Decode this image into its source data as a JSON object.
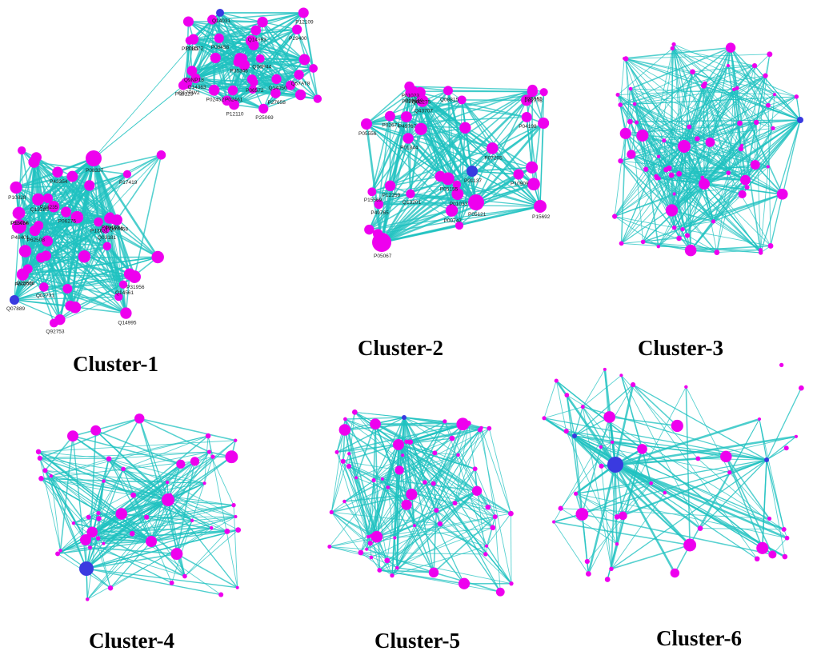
{
  "colors": {
    "edge": "#1fc2c0",
    "node": "#ee00ee",
    "hub": "#3a3ae0"
  },
  "clusters": [
    {
      "name": "Cluster-1",
      "node_labels": [
        "P08337",
        "Q07889",
        "P48401",
        "P16235",
        "P00270",
        "Q15836",
        "Q02731",
        "P06275",
        "P49443",
        "P22736",
        "Q14561",
        "P43354",
        "P55056",
        "P31956",
        "P11474",
        "P10828",
        "Q13285",
        "Q14995",
        "P62508",
        "P13631",
        "Q03181",
        "P17419",
        "Q9Y468",
        "Q92753",
        "Q14031",
        "Q17RW2",
        "P08458",
        "P06572",
        "Q14993",
        "P08123",
        "P29400",
        "P35346",
        "P12110",
        "P12109",
        "P12111",
        "P27658",
        "P25069",
        "Q9NP18",
        "Q06P44",
        "Q57AT8",
        "Q14050",
        "Q14363",
        "P02452",
        "P02461",
        "P08572"
      ]
    },
    {
      "name": "Cluster-2",
      "node_labels": [
        "P05067",
        "P01137",
        "P05121",
        "P15692",
        "P05556",
        "P01344",
        "P01033",
        "Q13201",
        "P04198",
        "P49765",
        "P49767",
        "P01023",
        "P00747",
        "P07205",
        "P02768",
        "P10909",
        "Q43707",
        "Q02275",
        "P02776",
        "P05155",
        "P02671",
        "P12259",
        "P35555",
        "P06519",
        "Q08815",
        "P15569"
      ]
    },
    {
      "name": "Cluster-3"
    },
    {
      "name": "Cluster-4"
    },
    {
      "name": "Cluster-5"
    },
    {
      "name": "Cluster-6"
    }
  ]
}
